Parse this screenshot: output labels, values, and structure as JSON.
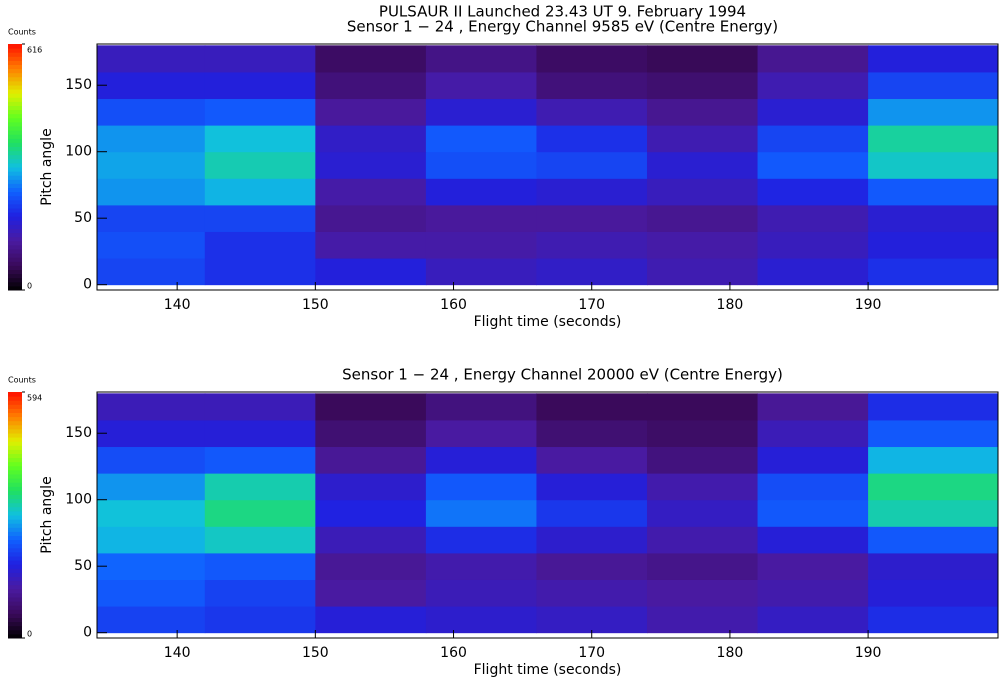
{
  "chart_data": [
    {
      "type": "heatmap",
      "title": "PULSAUR II Launched 23.43 UT 9. February 1994",
      "subtitle": "Sensor 1 − 24 , Energy Channel 9585 eV (Centre Energy)",
      "x_label": "Flight time (seconds)",
      "y_label": "Pitch angle",
      "colorbar_label": "Counts",
      "xlim": [
        134.2,
        199.4
      ],
      "xticks": [
        140,
        150,
        160,
        170,
        180,
        190
      ],
      "ylim": [
        -4,
        181
      ],
      "yticks": [
        0,
        50,
        100,
        150
      ],
      "zlim": [
        0,
        616
      ],
      "zticks": [
        0,
        616
      ],
      "colormap": [
        "#000000",
        "#3a0a5a",
        "#4a1aa0",
        "#2020e0",
        "#1060ff",
        "#10c0e0",
        "#20e060",
        "#60ff20",
        "#e0f000",
        "#ff8000",
        "#ff1000"
      ],
      "x_bins": [
        134.2,
        142,
        150,
        158,
        166,
        174,
        182,
        190,
        199.4
      ],
      "y_bins": [
        0,
        20,
        40,
        60,
        80,
        100,
        120,
        140,
        160,
        180
      ],
      "values": [
        [
          220,
          200,
          180,
          150,
          160,
          140,
          170,
          200
        ],
        [
          230,
          200,
          130,
          130,
          140,
          130,
          150,
          180
        ],
        [
          220,
          220,
          110,
          120,
          120,
          110,
          140,
          170
        ],
        [
          280,
          300,
          130,
          180,
          170,
          150,
          190,
          240
        ],
        [
          290,
          330,
          170,
          230,
          220,
          170,
          240,
          320
        ],
        [
          280,
          310,
          160,
          240,
          200,
          140,
          220,
          340
        ],
        [
          230,
          240,
          120,
          170,
          140,
          110,
          170,
          280
        ],
        [
          180,
          180,
          90,
          130,
          90,
          80,
          140,
          220
        ],
        [
          150,
          150,
          70,
          100,
          70,
          60,
          110,
          180
        ]
      ]
    },
    {
      "type": "heatmap",
      "title": "Sensor 1 − 24 , Energy Channel 20000 eV (Centre Energy)",
      "x_label": "Flight time (seconds)",
      "y_label": "Pitch angle",
      "colorbar_label": "Counts",
      "xlim": [
        134.2,
        199.4
      ],
      "xticks": [
        140,
        150,
        160,
        170,
        180,
        190
      ],
      "ylim": [
        -4,
        181
      ],
      "yticks": [
        0,
        50,
        100,
        150
      ],
      "zlim": [
        0,
        594
      ],
      "zticks": [
        0,
        594
      ],
      "colormap": [
        "#000000",
        "#3a0a5a",
        "#4a1aa0",
        "#2020e0",
        "#1060ff",
        "#10c0e0",
        "#20e060",
        "#60ff20",
        "#e0f000",
        "#ff8000",
        "#ff1000"
      ],
      "x_bins": [
        134.2,
        142,
        150,
        158,
        166,
        174,
        182,
        190,
        199.4
      ],
      "y_bins": [
        0,
        20,
        40,
        60,
        80,
        100,
        120,
        140,
        160,
        180
      ],
      "values": [
        [
          210,
          200,
          170,
          160,
          150,
          130,
          150,
          190
        ],
        [
          230,
          210,
          120,
          140,
          130,
          120,
          130,
          170
        ],
        [
          240,
          230,
          110,
          130,
          110,
          100,
          120,
          160
        ],
        [
          290,
          310,
          140,
          190,
          160,
          130,
          170,
          230
        ],
        [
          300,
          340,
          180,
          250,
          200,
          150,
          230,
          320
        ],
        [
          270,
          320,
          160,
          230,
          170,
          130,
          220,
          340
        ],
        [
          220,
          230,
          110,
          170,
          120,
          90,
          170,
          290
        ],
        [
          170,
          170,
          80,
          120,
          80,
          70,
          140,
          230
        ],
        [
          140,
          140,
          60,
          90,
          60,
          60,
          110,
          190
        ]
      ]
    }
  ]
}
